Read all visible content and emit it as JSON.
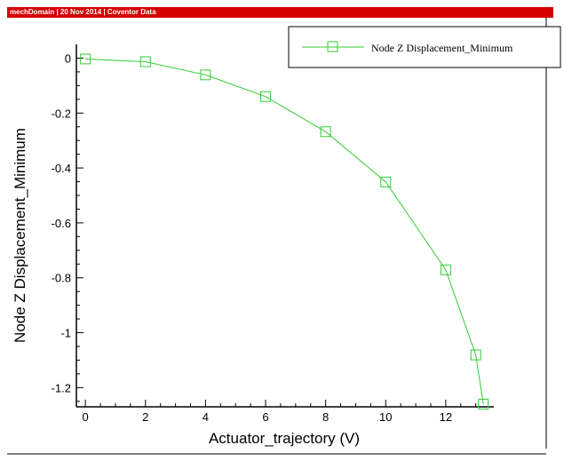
{
  "header": {
    "text": "mechDomain | 20 Nov 2014 | Coventor Data",
    "color": "#d40000"
  },
  "chart_data": {
    "type": "line",
    "title": "",
    "xlabel": "Actuator_trajectory (V)",
    "ylabel": "Node Z Displacement_Minimum",
    "xlim": [
      -0.3,
      13.6
    ],
    "ylim": [
      -1.27,
      0.05
    ],
    "x_ticks": [
      0,
      2,
      4,
      6,
      8,
      10,
      12
    ],
    "y_ticks": [
      0,
      -0.2,
      -0.4,
      -0.6,
      -0.8,
      -1,
      -1.2
    ],
    "y_tick_labels": [
      "0",
      "-0.2",
      "-0.4",
      "-0.6",
      "-0.8",
      "-1",
      "-1.2"
    ],
    "legend_position": "top-right",
    "series": [
      {
        "name": "Node Z Displacement_Minimum",
        "color": "#33cc33",
        "marker": "square",
        "x": [
          0,
          2,
          4,
          6,
          8,
          10,
          12,
          13,
          13.25
        ],
        "y": [
          -0.003,
          -0.013,
          -0.061,
          -0.14,
          -0.268,
          -0.451,
          -0.771,
          -1.081,
          -1.26
        ]
      }
    ]
  }
}
